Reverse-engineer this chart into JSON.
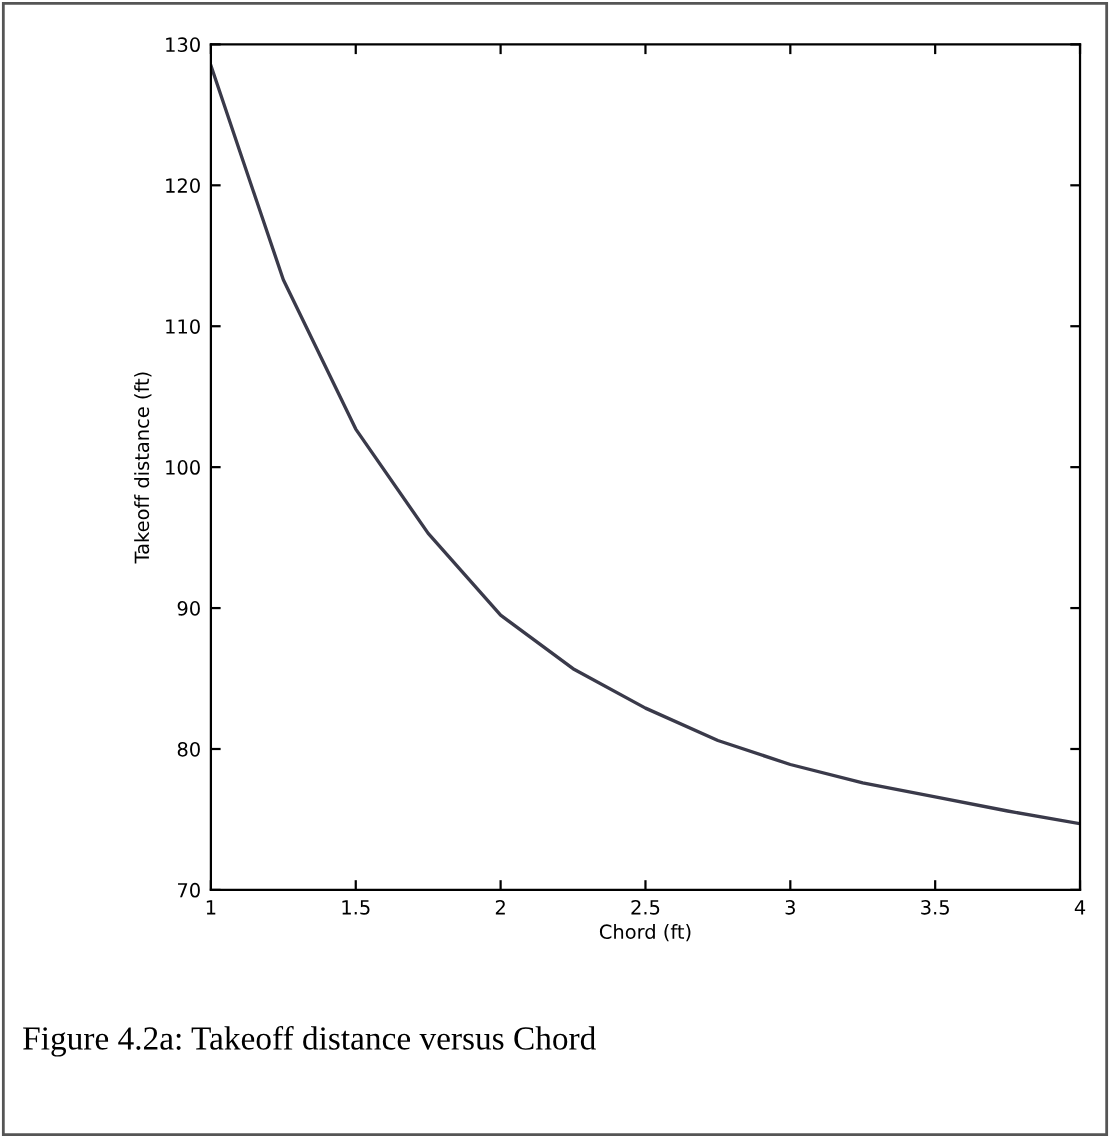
{
  "chart_data": {
    "type": "line",
    "xlabel": "Chord (ft)",
    "ylabel": "Takeoff distance (ft)",
    "x": [
      1,
      1.1,
      1.25,
      1.5,
      1.75,
      2,
      2.25,
      2.5,
      2.75,
      3,
      3.25,
      3.5,
      3.75,
      4
    ],
    "series": [
      {
        "color": "#3a3a4a",
        "values": [
          128.5,
          122.4,
          113.3,
          102.7,
          95.3,
          89.5,
          85.7,
          82.9,
          80.6,
          78.9,
          77.6,
          76.6,
          75.6,
          74.7
        ]
      }
    ],
    "xlim": [
      1,
      4
    ],
    "xticks": [
      1,
      1.5,
      2,
      2.5,
      3,
      3.5,
      4
    ],
    "ylim": [
      70,
      130
    ],
    "yticks": [
      70,
      80,
      90,
      100,
      110,
      120,
      130
    ],
    "grid": false,
    "legend": false,
    "marker": "none",
    "line_style": "solid",
    "annotations": [
      "Figure 4.2a: Takeoff distance versus Chord"
    ]
  }
}
